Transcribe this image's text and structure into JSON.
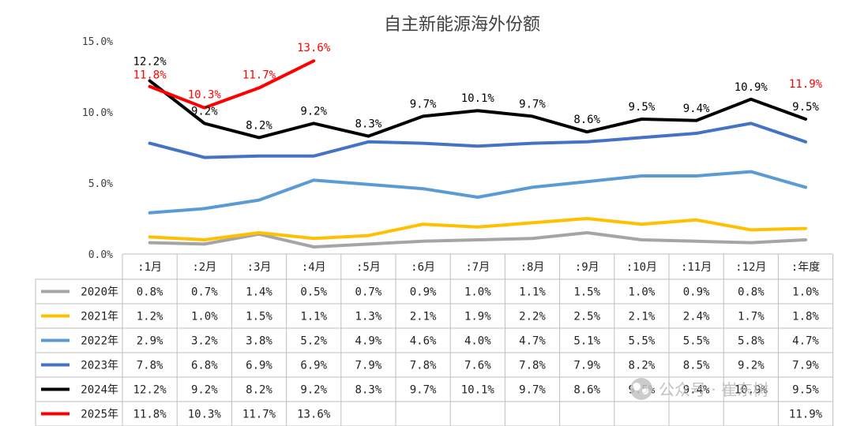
{
  "chart_data": {
    "type": "line",
    "title": "自主新能源海外份额",
    "categories": [
      ":1月",
      ":2月",
      ":3月",
      ":4月",
      ":5月",
      ":6月",
      ":7月",
      ":8月",
      ":9月",
      ":10月",
      ":11月",
      ":12月",
      ":年度"
    ],
    "yticks": [
      "0.0%",
      "5.0%",
      "10.0%",
      "15.0%"
    ],
    "ylim": [
      0,
      15
    ],
    "grid": false,
    "legend": "data-table-left",
    "series": [
      {
        "name": "2020年",
        "color": "#a5a5a5",
        "values": [
          0.8,
          0.7,
          1.4,
          0.5,
          0.7,
          0.9,
          1.0,
          1.1,
          1.5,
          1.0,
          0.9,
          0.8,
          1.0
        ],
        "cells": [
          "0.8%",
          "0.7%",
          "1.4%",
          "0.5%",
          "0.7%",
          "0.9%",
          "1.0%",
          "1.1%",
          "1.5%",
          "1.0%",
          "0.9%",
          "0.8%",
          "1.0%"
        ]
      },
      {
        "name": "2021年",
        "color": "#ffc000",
        "values": [
          1.2,
          1.0,
          1.5,
          1.1,
          1.3,
          2.1,
          1.9,
          2.2,
          2.5,
          2.1,
          2.4,
          1.7,
          1.8
        ],
        "cells": [
          "1.2%",
          "1.0%",
          "1.5%",
          "1.1%",
          "1.3%",
          "2.1%",
          "1.9%",
          "2.2%",
          "2.5%",
          "2.1%",
          "2.4%",
          "1.7%",
          "1.8%"
        ]
      },
      {
        "name": "2022年",
        "color": "#5b9bd5",
        "values": [
          2.9,
          3.2,
          3.8,
          5.2,
          4.9,
          4.6,
          4.0,
          4.7,
          5.1,
          5.5,
          5.5,
          5.8,
          4.7
        ],
        "cells": [
          "2.9%",
          "3.2%",
          "3.8%",
          "5.2%",
          "4.9%",
          "4.6%",
          "4.0%",
          "4.7%",
          "5.1%",
          "5.5%",
          "5.5%",
          "5.8%",
          "4.7%"
        ]
      },
      {
        "name": "2023年",
        "color": "#4472c4",
        "values": [
          7.8,
          6.8,
          6.9,
          6.9,
          7.9,
          7.8,
          7.6,
          7.8,
          7.9,
          8.2,
          8.5,
          9.2,
          7.9
        ],
        "cells": [
          "7.8%",
          "6.8%",
          "6.9%",
          "6.9%",
          "7.9%",
          "7.8%",
          "7.6%",
          "7.8%",
          "7.9%",
          "8.2%",
          "8.5%",
          "9.2%",
          "7.9%"
        ]
      },
      {
        "name": "2024年",
        "color": "#000000",
        "values": [
          12.2,
          9.2,
          8.2,
          9.2,
          8.3,
          9.7,
          10.1,
          9.7,
          8.6,
          9.5,
          9.4,
          10.9,
          9.5
        ],
        "cells": [
          "12.2%",
          "9.2%",
          "8.2%",
          "9.2%",
          "8.3%",
          "9.7%",
          "10.1%",
          "9.7%",
          "8.6%",
          "9.5%",
          "9.4%",
          "10.9%",
          "9.5%"
        ],
        "labels": [
          "12.2%",
          "9.2%",
          "8.2%",
          "9.2%",
          "8.3%",
          "9.7%",
          "10.1%",
          "9.7%",
          "8.6%",
          "9.5%",
          "9.4%",
          "10.9%",
          "9.5%"
        ]
      },
      {
        "name": "2025年",
        "color": "#ff0000",
        "values": [
          11.8,
          10.3,
          11.7,
          13.6,
          null,
          null,
          null,
          null,
          null,
          null,
          null,
          null,
          11.9
        ],
        "cells": [
          "11.8%",
          "10.3%",
          "11.7%",
          "13.6%",
          "",
          "",
          "",
          "",
          "",
          "",
          "",
          "",
          "11.9%"
        ],
        "labels": [
          "11.8%",
          "10.3%",
          "11.7%",
          "13.6%",
          "",
          "",
          "",
          "",
          "",
          "",
          "",
          "",
          "11.9%"
        ]
      }
    ]
  },
  "watermark": "公众号 · 崔东树"
}
